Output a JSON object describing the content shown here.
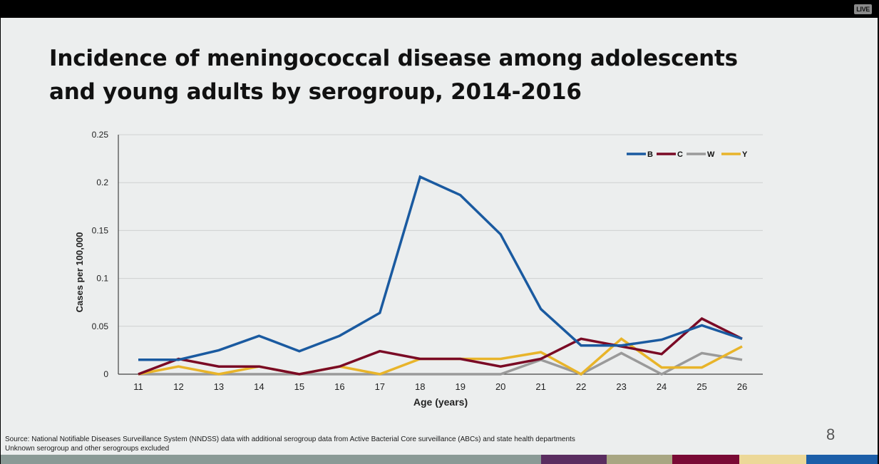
{
  "overlay": {
    "live_badge": "LIVE"
  },
  "slide": {
    "title_line1": "Incidence of meningococcal disease among adolescents",
    "title_line2": "and young adults by serogroup, 2014-2016",
    "source_line1": "Source: National Notifiable Diseases Surveillance System (NNDSS) data with additional serogroup data from Active Bacterial Core surveillance (ABCs) and state health departments",
    "source_line2": "Unknown serogroup and other serogroups excluded",
    "page_number": "8",
    "footer_colors": [
      "#8a9a96",
      "#5a2d60",
      "#a8a682",
      "#7a0a35",
      "#ecd898",
      "#1c5ea8"
    ]
  },
  "chart_data": {
    "type": "line",
    "title": "Incidence of meningococcal disease among adolescents and young adults by serogroup, 2014-2016",
    "xlabel": "Age (years)",
    "ylabel": "Cases per 100,000",
    "x": [
      11,
      12,
      13,
      14,
      15,
      16,
      17,
      18,
      19,
      20,
      21,
      22,
      23,
      24,
      25,
      26
    ],
    "ylim": [
      0,
      0.25
    ],
    "yticks": [
      0,
      0.05,
      0.1,
      0.15,
      0.2,
      0.25
    ],
    "ytick_labels": [
      "0",
      "0.05",
      "0.1",
      "0.15",
      "0.2",
      "0.25"
    ],
    "grid": true,
    "legend_position": "top-right",
    "series": [
      {
        "name": "B",
        "color": "#1a5aa0",
        "values": [
          0.015,
          0.015,
          0.025,
          0.04,
          0.024,
          0.04,
          0.064,
          0.206,
          0.187,
          0.146,
          0.068,
          0.03,
          0.03,
          0.036,
          0.051,
          0.037
        ]
      },
      {
        "name": "C",
        "color": "#7a0a25",
        "values": [
          0,
          0.016,
          0.008,
          0.008,
          0,
          0.008,
          0.024,
          0.016,
          0.016,
          0.008,
          0.016,
          0.037,
          0.029,
          0.021,
          0.058,
          0.037
        ]
      },
      {
        "name": "W",
        "color": "#9a9a9a",
        "values": [
          0,
          0,
          0,
          0,
          0,
          0,
          0,
          0,
          0,
          0,
          0.015,
          0,
          0.022,
          0,
          0.022,
          0.015
        ]
      },
      {
        "name": "Y",
        "color": "#e8b42a",
        "values": [
          0,
          0.008,
          0,
          0.008,
          0,
          0.008,
          0,
          0.016,
          0.016,
          0.016,
          0.023,
          0,
          0.037,
          0.007,
          0.007,
          0.029
        ]
      }
    ]
  }
}
